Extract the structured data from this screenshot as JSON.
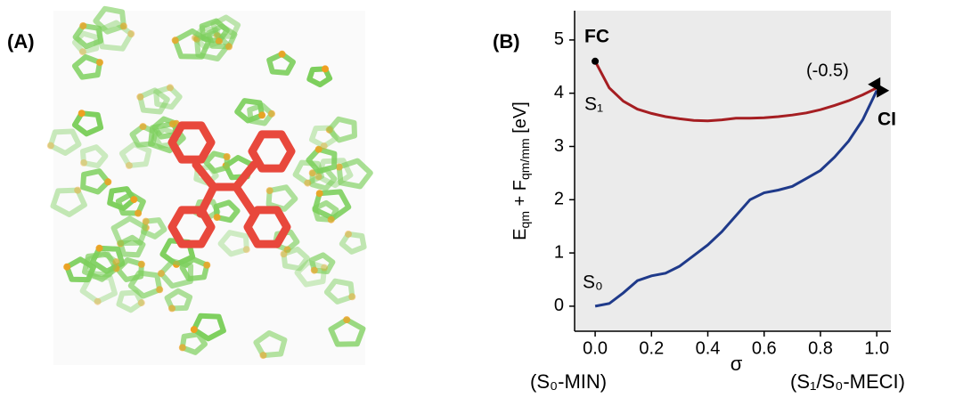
{
  "panel_labels": [
    "(A)",
    "(B)"
  ],
  "chart_data": {
    "type": "line",
    "xlabel": "σ",
    "ylabel": [
      "E",
      "qm",
      " + F",
      "qm/mm",
      " [eV]"
    ],
    "x": [
      0,
      0.05,
      0.1,
      0.15,
      0.2,
      0.25,
      0.3,
      0.35,
      0.4,
      0.45,
      0.5,
      0.55,
      0.6,
      0.65,
      0.7,
      0.75,
      0.8,
      0.85,
      0.9,
      0.95,
      1.0
    ],
    "series": [
      {
        "name": "S₁",
        "color": "#a51e22",
        "values": [
          4.6,
          4.1,
          3.85,
          3.7,
          3.62,
          3.56,
          3.52,
          3.49,
          3.48,
          3.5,
          3.53,
          3.53,
          3.54,
          3.56,
          3.59,
          3.63,
          3.69,
          3.77,
          3.86,
          3.97,
          4.1
        ]
      },
      {
        "name": "S₀",
        "color": "#1f3a8a",
        "values": [
          0,
          0.05,
          0.25,
          0.48,
          0.57,
          0.62,
          0.75,
          0.95,
          1.15,
          1.4,
          1.7,
          2.0,
          2.13,
          2.18,
          2.25,
          2.4,
          2.55,
          2.8,
          3.1,
          3.5,
          4.05
        ]
      }
    ],
    "xlim": [
      -0.073,
      1.05
    ],
    "ylim": [
      -0.47,
      5.55
    ],
    "xticks": [
      {
        "value": 0,
        "label": "0.0"
      },
      {
        "value": 0.2,
        "label": "0.2"
      },
      {
        "value": 0.4,
        "label": "0.4"
      },
      {
        "value": 0.6,
        "label": "0.6"
      },
      {
        "value": 0.8,
        "label": "0.8"
      },
      {
        "value": 1.0,
        "label": "1.0"
      }
    ],
    "yticks": [
      0,
      1,
      2,
      3,
      4,
      5
    ],
    "annotations": {
      "fc": "FC",
      "ci": "CI",
      "scale": "(-0.5)",
      "left": "(S₀-MIN)",
      "right": "(S₁/S₀-MECI)"
    },
    "background": "#ebebeb"
  }
}
